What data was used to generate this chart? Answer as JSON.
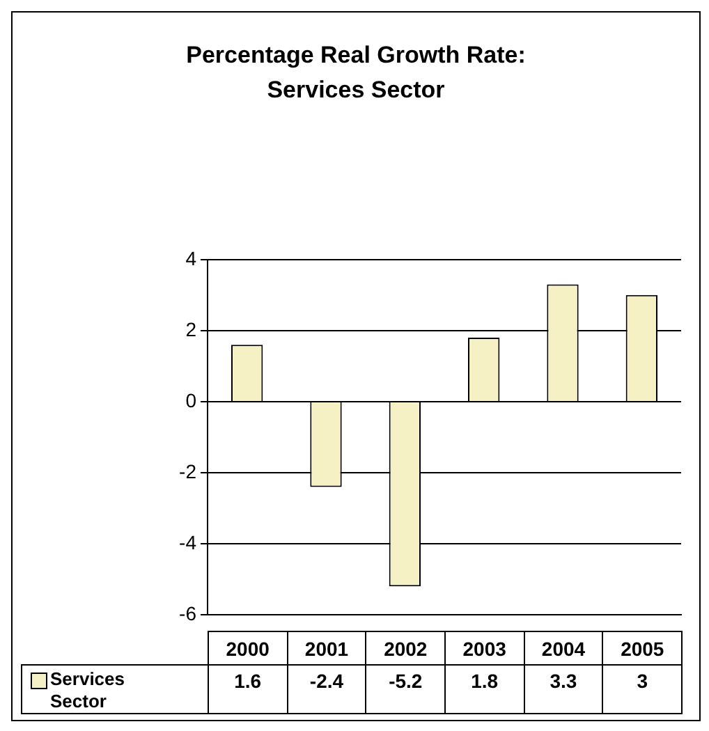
{
  "chart_data": {
    "type": "bar",
    "title": "Percentage Real Growth Rate:\nServices Sector",
    "categories": [
      "2000",
      "2001",
      "2002",
      "2003",
      "2004",
      "2005"
    ],
    "series": [
      {
        "name": "Services Sector",
        "color": "#f6f1c4",
        "values": [
          1.6,
          -2.4,
          -5.2,
          1.8,
          3.3,
          3
        ]
      }
    ],
    "ylim": [
      -6,
      4
    ],
    "yticks": [
      -6,
      -4,
      -2,
      0,
      2,
      4
    ],
    "grid": "y",
    "legend": "bottom",
    "data_labels": true
  }
}
